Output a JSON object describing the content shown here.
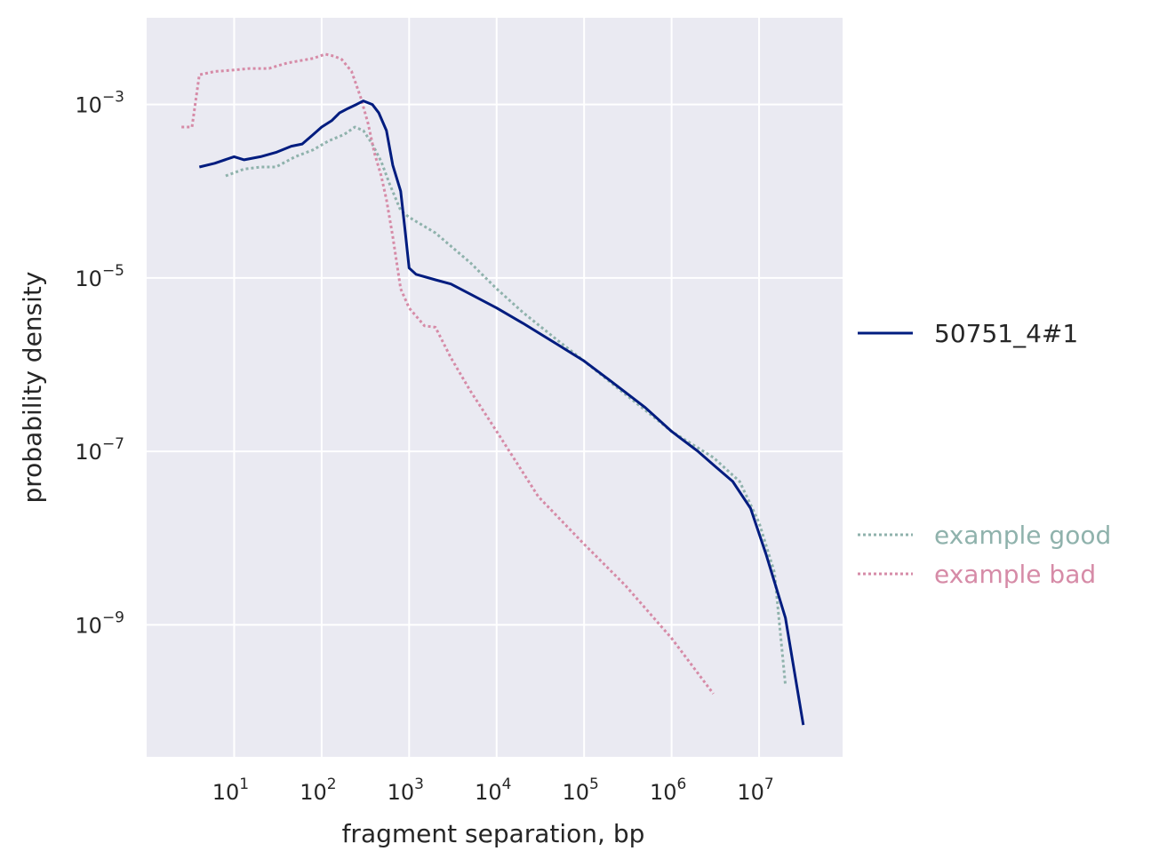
{
  "chart_data": {
    "type": "line",
    "xlabel": "fragment separation, bp",
    "ylabel": "probability density",
    "xscale": "log",
    "yscale": "log",
    "xlim": [
      1.0,
      90000000
    ],
    "ylim": [
      3e-11,
      0.01
    ],
    "x_ticks": [
      {
        "value": 10,
        "base": "10",
        "exp": "1"
      },
      {
        "value": 100,
        "base": "10",
        "exp": "2"
      },
      {
        "value": 1000,
        "base": "10",
        "exp": "3"
      },
      {
        "value": 10000,
        "base": "10",
        "exp": "4"
      },
      {
        "value": 100000,
        "base": "10",
        "exp": "5"
      },
      {
        "value": 1000000,
        "base": "10",
        "exp": "6"
      },
      {
        "value": 10000000,
        "base": "10",
        "exp": "7"
      }
    ],
    "y_ticks": [
      {
        "value": 0.001,
        "base": "10",
        "exp": "−3"
      },
      {
        "value": 1e-05,
        "base": "10",
        "exp": "−5"
      },
      {
        "value": 1e-07,
        "base": "10",
        "exp": "−7"
      },
      {
        "value": 1e-09,
        "base": "10",
        "exp": "−9"
      }
    ],
    "grid": true,
    "legend_placement": "right, outside plot",
    "series": [
      {
        "name": "50751_4#1",
        "color": "#001c7f",
        "style": "solid",
        "points": [
          [
            4,
            0.00019
          ],
          [
            6,
            0.00021
          ],
          [
            10,
            0.00025
          ],
          [
            13,
            0.00023
          ],
          [
            20,
            0.00025
          ],
          [
            30,
            0.00028
          ],
          [
            45,
            0.00033
          ],
          [
            60,
            0.00035
          ],
          [
            80,
            0.00045
          ],
          [
            100,
            0.00055
          ],
          [
            130,
            0.00065
          ],
          [
            160,
            0.0008
          ],
          [
            200,
            0.0009
          ],
          [
            250,
            0.001
          ],
          [
            300,
            0.0011
          ],
          [
            380,
            0.001
          ],
          [
            450,
            0.0008
          ],
          [
            550,
            0.0005
          ],
          [
            650,
            0.0002
          ],
          [
            800,
            0.0001
          ],
          [
            900,
            3.5e-05
          ],
          [
            1000,
            1.3e-05
          ],
          [
            1200,
            1.1e-05
          ],
          [
            2000,
            9.5e-06
          ],
          [
            3000,
            8.5e-06
          ],
          [
            5000,
            6.5e-06
          ],
          [
            10000,
            4.5e-06
          ],
          [
            20000,
            3e-06
          ],
          [
            50000,
            1.7e-06
          ],
          [
            100000,
            1.1e-06
          ],
          [
            200000,
            6.5e-07
          ],
          [
            500000,
            3.2e-07
          ],
          [
            1000000,
            1.7e-07
          ],
          [
            2000000,
            1e-07
          ],
          [
            3000000,
            7e-08
          ],
          [
            5000000,
            4.5e-08
          ],
          [
            8000000,
            2.2e-08
          ],
          [
            12000000,
            6.5e-09
          ],
          [
            20000000,
            1.2e-09
          ],
          [
            32000000,
            7e-11
          ]
        ]
      },
      {
        "name": "example good",
        "color": "#8fb2ac",
        "style": "dotted",
        "points": [
          [
            8,
            0.00015
          ],
          [
            13,
            0.00018
          ],
          [
            20,
            0.00019
          ],
          [
            30,
            0.00019
          ],
          [
            50,
            0.00025
          ],
          [
            80,
            0.0003
          ],
          [
            120,
            0.00038
          ],
          [
            180,
            0.00045
          ],
          [
            240,
            0.00055
          ],
          [
            300,
            0.0005
          ],
          [
            380,
            0.00035
          ],
          [
            480,
            0.00022
          ],
          [
            600,
            0.00012
          ],
          [
            800,
            6e-05
          ],
          [
            1000,
            5e-05
          ],
          [
            2000,
            3.3e-05
          ],
          [
            5000,
            1.5e-05
          ],
          [
            10000,
            7.5e-06
          ],
          [
            20000,
            4e-06
          ],
          [
            50000,
            1.9e-06
          ],
          [
            100000,
            1.1e-06
          ],
          [
            300000,
            4.5e-07
          ],
          [
            1000000,
            1.7e-07
          ],
          [
            3000000,
            8.5e-08
          ],
          [
            6000000,
            4.5e-08
          ],
          [
            10000000,
            1.5e-08
          ],
          [
            15000000,
            4e-09
          ],
          [
            20000000,
            2e-10
          ]
        ]
      },
      {
        "name": "example bad",
        "color": "#d68ba7",
        "style": "dotted",
        "points": [
          [
            2.5,
            0.00055
          ],
          [
            3.3,
            0.00055
          ],
          [
            4,
            0.0022
          ],
          [
            6,
            0.0024
          ],
          [
            10,
            0.0025
          ],
          [
            15,
            0.0026
          ],
          [
            25,
            0.0026
          ],
          [
            40,
            0.003
          ],
          [
            80,
            0.0034
          ],
          [
            110,
            0.0038
          ],
          [
            140,
            0.0036
          ],
          [
            170,
            0.0033
          ],
          [
            220,
            0.0024
          ],
          [
            280,
            0.0012
          ],
          [
            340,
            0.0006
          ],
          [
            400,
            0.00028
          ],
          [
            480,
            0.00015
          ],
          [
            550,
            8e-05
          ],
          [
            650,
            3e-05
          ],
          [
            800,
            7.5e-06
          ],
          [
            1000,
            4.5e-06
          ],
          [
            1500,
            2.8e-06
          ],
          [
            2000,
            2.7e-06
          ],
          [
            3000,
            1.2e-06
          ],
          [
            5000,
            5e-07
          ],
          [
            10000,
            1.7e-07
          ],
          [
            30000,
            3e-08
          ],
          [
            100000,
            8.5e-09
          ],
          [
            300000,
            2.8e-09
          ],
          [
            1000000,
            7e-10
          ],
          [
            3000000,
            1.6e-10
          ]
        ]
      }
    ]
  }
}
